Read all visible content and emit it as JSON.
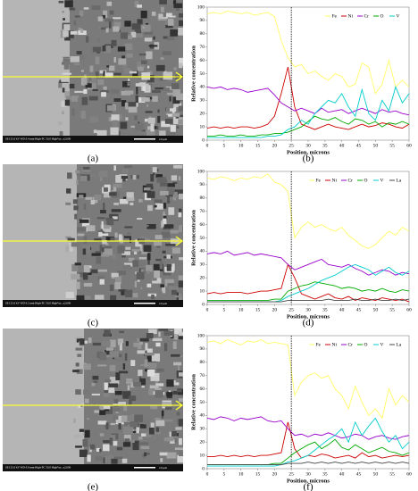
{
  "images": [
    {
      "label": "(a)",
      "scale": "10 μm",
      "info": "SEI 25.0 kV WD 9.4 mm High-PC 50.0 HighVac. x2,000"
    },
    {
      "label": "(c)",
      "scale": "10 μm",
      "info": "SEI 25.0 kV WD 9.2 mm High-PC 50.0 HighVac. x2,000"
    },
    {
      "label": "(e)",
      "scale": "10 μm",
      "info": "SEI 25.0 kV WD 9.9 mm High-PC 50.0 HighVac. x2,000"
    }
  ],
  "chart_data": [
    {
      "type": "line",
      "panel_label": "(b)",
      "xlabel": "Position, microns",
      "ylabel": "Relative concentration",
      "x": [
        0,
        2,
        4,
        6,
        8,
        10,
        12,
        14,
        16,
        18,
        20,
        22,
        24,
        26,
        28,
        30,
        32,
        34,
        36,
        38,
        40,
        42,
        44,
        46,
        48,
        50,
        52,
        54,
        56,
        58,
        60
      ],
      "xlim": [
        0,
        60
      ],
      "xticks": [
        0,
        5,
        10,
        15,
        20,
        25,
        30,
        35,
        40,
        45,
        50,
        55,
        60
      ],
      "ylim": [
        0,
        100
      ],
      "yticks": [
        0,
        10,
        20,
        30,
        40,
        50,
        60,
        70,
        80,
        90,
        100
      ],
      "marker_x": 25,
      "legend": "top-right",
      "series": [
        {
          "name": "Fe",
          "color": "#ffff66",
          "values": [
            95,
            96,
            95,
            97,
            96,
            95,
            96,
            94,
            95,
            96,
            93,
            75,
            62,
            55,
            57,
            50,
            52,
            48,
            45,
            50,
            48,
            40,
            42,
            58,
            55,
            35,
            42,
            60,
            40,
            45,
            40
          ]
        },
        {
          "name": "Ni",
          "color": "#cc0000",
          "values": [
            9,
            10,
            9,
            10,
            9,
            10,
            10,
            9,
            10,
            12,
            18,
            35,
            55,
            25,
            12,
            10,
            8,
            10,
            12,
            10,
            9,
            8,
            10,
            12,
            10,
            11,
            13,
            12,
            10,
            9,
            12
          ]
        },
        {
          "name": "Cr",
          "color": "#9900cc",
          "values": [
            40,
            39,
            40,
            38,
            39,
            38,
            36,
            37,
            38,
            39,
            34,
            28,
            25,
            22,
            24,
            22,
            20,
            24,
            21,
            22,
            23,
            20,
            22,
            24,
            22,
            20,
            23,
            21,
            22,
            20,
            19
          ]
        },
        {
          "name": "O",
          "color": "#00aa00",
          "values": [
            3,
            3,
            4,
            3,
            3,
            4,
            3,
            3,
            4,
            4,
            5,
            5,
            6,
            8,
            10,
            14,
            18,
            16,
            15,
            17,
            14,
            12,
            16,
            15,
            12,
            14,
            10,
            13,
            12,
            14,
            12
          ]
        },
        {
          "name": "V",
          "color": "#00cccc",
          "values": [
            2,
            2,
            2,
            2,
            2,
            2,
            2,
            2,
            2,
            3,
            3,
            4,
            8,
            10,
            15,
            12,
            20,
            25,
            30,
            28,
            35,
            25,
            18,
            38,
            20,
            15,
            30,
            22,
            40,
            28,
            35
          ]
        }
      ]
    },
    {
      "type": "line",
      "panel_label": "(d)",
      "xlabel": "Position, microns",
      "ylabel": "Relative concentration",
      "x": [
        0,
        2,
        4,
        6,
        8,
        10,
        12,
        14,
        16,
        18,
        20,
        22,
        24,
        26,
        28,
        30,
        32,
        34,
        36,
        38,
        40,
        42,
        44,
        46,
        48,
        50,
        52,
        54,
        56,
        58,
        60
      ],
      "xlim": [
        0,
        60
      ],
      "xticks": [
        0,
        5,
        10,
        15,
        20,
        25,
        30,
        35,
        40,
        45,
        50,
        55,
        60
      ],
      "ylim": [
        0,
        100
      ],
      "yticks": [
        0,
        10,
        20,
        30,
        40,
        50,
        60,
        70,
        80,
        90,
        100
      ],
      "marker_x": 25,
      "legend": "top-right",
      "series": [
        {
          "name": "Fe",
          "color": "#ffff66",
          "values": [
            95,
            94,
            96,
            95,
            93,
            95,
            94,
            96,
            95,
            98,
            92,
            90,
            85,
            50,
            58,
            62,
            58,
            60,
            57,
            55,
            58,
            52,
            48,
            44,
            42,
            45,
            50,
            55,
            52,
            58,
            55
          ]
        },
        {
          "name": "Ni",
          "color": "#cc0000",
          "values": [
            8,
            9,
            8,
            9,
            9,
            9,
            8,
            9,
            10,
            10,
            11,
            12,
            30,
            20,
            8,
            6,
            4,
            6,
            8,
            5,
            4,
            6,
            3,
            5,
            4,
            3,
            5,
            4,
            3,
            4,
            2
          ]
        },
        {
          "name": "Cr",
          "color": "#9900cc",
          "values": [
            38,
            39,
            38,
            40,
            37,
            38,
            39,
            37,
            38,
            37,
            36,
            35,
            30,
            26,
            28,
            30,
            32,
            34,
            30,
            29,
            28,
            30,
            27,
            25,
            22,
            24,
            26,
            25,
            22,
            24,
            23
          ]
        },
        {
          "name": "O",
          "color": "#00aa00",
          "values": [
            3,
            3,
            3,
            3,
            3,
            3,
            3,
            3,
            3,
            3,
            4,
            4,
            10,
            12,
            14,
            15,
            17,
            16,
            15,
            14,
            12,
            13,
            12,
            10,
            11,
            10,
            12,
            10,
            9,
            11,
            10
          ]
        },
        {
          "name": "V",
          "color": "#00cccc",
          "values": [
            2,
            2,
            2,
            2,
            2,
            2,
            2,
            2,
            2,
            2,
            2,
            3,
            6,
            8,
            10,
            12,
            15,
            18,
            20,
            22,
            25,
            28,
            30,
            28,
            26,
            22,
            25,
            28,
            24,
            22,
            25
          ]
        },
        {
          "name": "La",
          "color": "#444444",
          "values": [
            2,
            2,
            2,
            2,
            2,
            2,
            2,
            2,
            2,
            2,
            2,
            2,
            3,
            3,
            3,
            3,
            3,
            3,
            4,
            3,
            3,
            3,
            4,
            3,
            3,
            4,
            3,
            3,
            4,
            3,
            4
          ]
        }
      ]
    },
    {
      "type": "line",
      "panel_label": "(f)",
      "xlabel": "Position, microns",
      "ylabel": "Relative concentration",
      "x": [
        0,
        2,
        4,
        6,
        8,
        10,
        12,
        14,
        16,
        18,
        20,
        22,
        24,
        26,
        28,
        30,
        32,
        34,
        36,
        38,
        40,
        42,
        44,
        46,
        48,
        50,
        52,
        54,
        56,
        58,
        60
      ],
      "xlim": [
        0,
        60
      ],
      "xticks": [
        0,
        5,
        10,
        15,
        20,
        25,
        30,
        35,
        40,
        45,
        50,
        55,
        60
      ],
      "ylim": [
        0,
        100
      ],
      "yticks": [
        0,
        10,
        20,
        30,
        40,
        50,
        60,
        70,
        80,
        90,
        100
      ],
      "marker_x": 25,
      "legend": "top-right",
      "series": [
        {
          "name": "Fe",
          "color": "#ffff66",
          "values": [
            95,
            96,
            94,
            97,
            95,
            93,
            96,
            95,
            97,
            94,
            95,
            94,
            93,
            55,
            65,
            70,
            72,
            68,
            70,
            60,
            55,
            45,
            62,
            50,
            40,
            45,
            38,
            60,
            48,
            55,
            50
          ]
        },
        {
          "name": "Ni",
          "color": "#cc0000",
          "values": [
            9,
            9,
            10,
            9,
            10,
            9,
            10,
            9,
            10,
            10,
            11,
            12,
            35,
            15,
            8,
            10,
            9,
            11,
            10,
            8,
            9,
            10,
            8,
            12,
            9,
            10,
            8,
            9,
            10,
            9,
            10
          ]
        },
        {
          "name": "Cr",
          "color": "#9900cc",
          "values": [
            38,
            37,
            39,
            38,
            36,
            38,
            37,
            38,
            39,
            36,
            35,
            36,
            30,
            25,
            26,
            24,
            26,
            25,
            27,
            25,
            23,
            24,
            26,
            25,
            22,
            24,
            25,
            23,
            22,
            24,
            25
          ]
        },
        {
          "name": "O",
          "color": "#00aa00",
          "values": [
            3,
            3,
            3,
            3,
            3,
            3,
            3,
            3,
            3,
            3,
            4,
            4,
            8,
            12,
            15,
            18,
            20,
            15,
            18,
            22,
            16,
            14,
            18,
            15,
            12,
            14,
            16,
            13,
            12,
            10,
            12
          ]
        },
        {
          "name": "V",
          "color": "#00cccc",
          "values": [
            2,
            2,
            2,
            2,
            2,
            2,
            2,
            2,
            2,
            2,
            2,
            3,
            5,
            6,
            8,
            10,
            14,
            18,
            22,
            25,
            30,
            20,
            35,
            25,
            32,
            38,
            28,
            20,
            25,
            15,
            20
          ]
        },
        {
          "name": "La",
          "color": "#444444",
          "values": [
            3,
            3,
            3,
            3,
            3,
            3,
            3,
            3,
            3,
            3,
            3,
            3,
            4,
            4,
            4,
            5,
            4,
            5,
            4,
            5,
            4,
            5,
            4,
            5,
            4,
            5,
            4,
            5,
            4,
            5,
            4
          ]
        }
      ]
    }
  ]
}
